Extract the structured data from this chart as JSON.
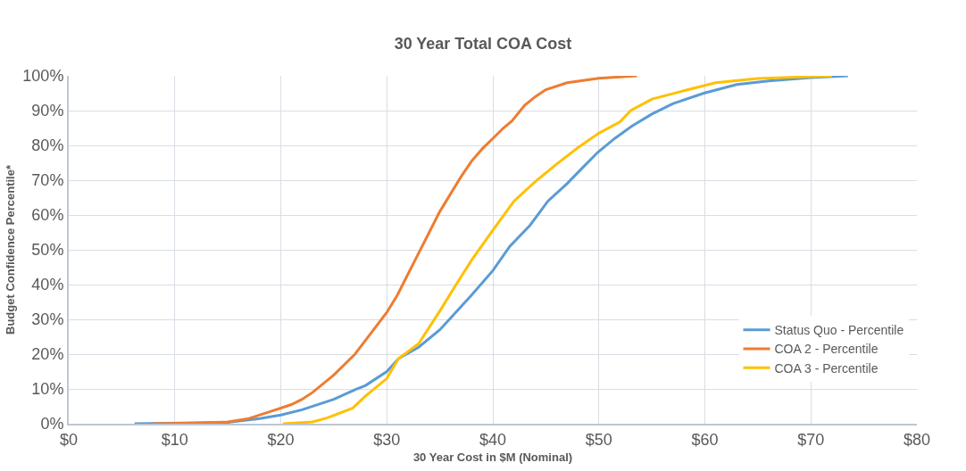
{
  "chart_data": {
    "type": "line",
    "title": "30 Year Total COA Cost",
    "xlabel": "30 Year Cost in $M (Nominal)",
    "ylabel": "Budget Confidence Percentile*",
    "xlim": [
      0,
      80
    ],
    "xticks": [
      {
        "value": 0,
        "label": "$0"
      },
      {
        "value": 10,
        "label": "$10"
      },
      {
        "value": 20,
        "label": "$20"
      },
      {
        "value": 30,
        "label": "$30"
      },
      {
        "value": 40,
        "label": "$40"
      },
      {
        "value": 50,
        "label": "$50"
      },
      {
        "value": 60,
        "label": "$60"
      },
      {
        "value": 70,
        "label": "$70"
      },
      {
        "value": 80,
        "label": "$80"
      }
    ],
    "ylim": [
      0,
      100
    ],
    "yticks": [
      {
        "value": 0,
        "label": "0%"
      },
      {
        "value": 10,
        "label": "10%"
      },
      {
        "value": 20,
        "label": "20%"
      },
      {
        "value": 30,
        "label": "30%"
      },
      {
        "value": 40,
        "label": "40%"
      },
      {
        "value": 50,
        "label": "50%"
      },
      {
        "value": 60,
        "label": "60%"
      },
      {
        "value": 70,
        "label": "70%"
      },
      {
        "value": 80,
        "label": "80%"
      },
      {
        "value": 90,
        "label": "90%"
      },
      {
        "value": 100,
        "label": "100%"
      }
    ],
    "grid": true,
    "legend": "bottom right",
    "marker": "none",
    "line_style": "solid",
    "series": [
      {
        "name": "Status Quo - Percentile",
        "color": "#5b9bd5",
        "x": [
          6.2,
          15,
          18,
          20,
          22,
          25,
          27,
          28,
          30,
          31.1,
          33,
          35,
          36.5,
          38,
          40,
          41.6,
          43.5,
          45.2,
          47,
          48.6,
          49.9,
          51.5,
          53.1,
          55,
          57,
          59.9,
          63,
          66,
          70,
          73.5
        ],
        "values": [
          0,
          0.4,
          1.5,
          2.5,
          4,
          7,
          9.8,
          11,
          15,
          18.7,
          22,
          27,
          32,
          37,
          44,
          51,
          57,
          64,
          69,
          74,
          78,
          82,
          85.5,
          89,
          92,
          95,
          97.5,
          98.5,
          99.5,
          100
        ]
      },
      {
        "name": "COA 2 - Percentile",
        "color": "#ed7d31",
        "x": [
          8,
          12,
          15,
          17,
          19,
          20,
          21,
          22,
          23,
          25,
          27,
          28,
          30,
          31,
          32,
          33,
          34,
          35,
          36,
          37,
          38,
          39,
          40,
          41,
          41.8,
          43,
          44,
          45,
          47,
          50,
          53.6
        ],
        "values": [
          0,
          0.2,
          0.5,
          1.5,
          3.5,
          4.5,
          5.5,
          7,
          9,
          14,
          20,
          24,
          32,
          37,
          43,
          49,
          55,
          61,
          66,
          71,
          75.5,
          79,
          82,
          85,
          87,
          91.5,
          94,
          96,
          98,
          99.3,
          100
        ]
      },
      {
        "name": "COA 3 - Percentile",
        "color": "#ffc000",
        "x": [
          20.2,
          23,
          24.4,
          26.8,
          28,
          30,
          31.1,
          33,
          35,
          36.5,
          38,
          40,
          42,
          44,
          46,
          48,
          50,
          52,
          53,
          55,
          58,
          61,
          65,
          72
        ],
        "values": [
          0,
          0.5,
          1.7,
          4.5,
          8,
          13,
          18.7,
          23,
          32.4,
          39.8,
          47,
          55.6,
          64,
          69.6,
          74.6,
          79.3,
          83.5,
          86.8,
          90,
          93.3,
          95.7,
          98,
          99.2,
          100
        ]
      }
    ]
  }
}
